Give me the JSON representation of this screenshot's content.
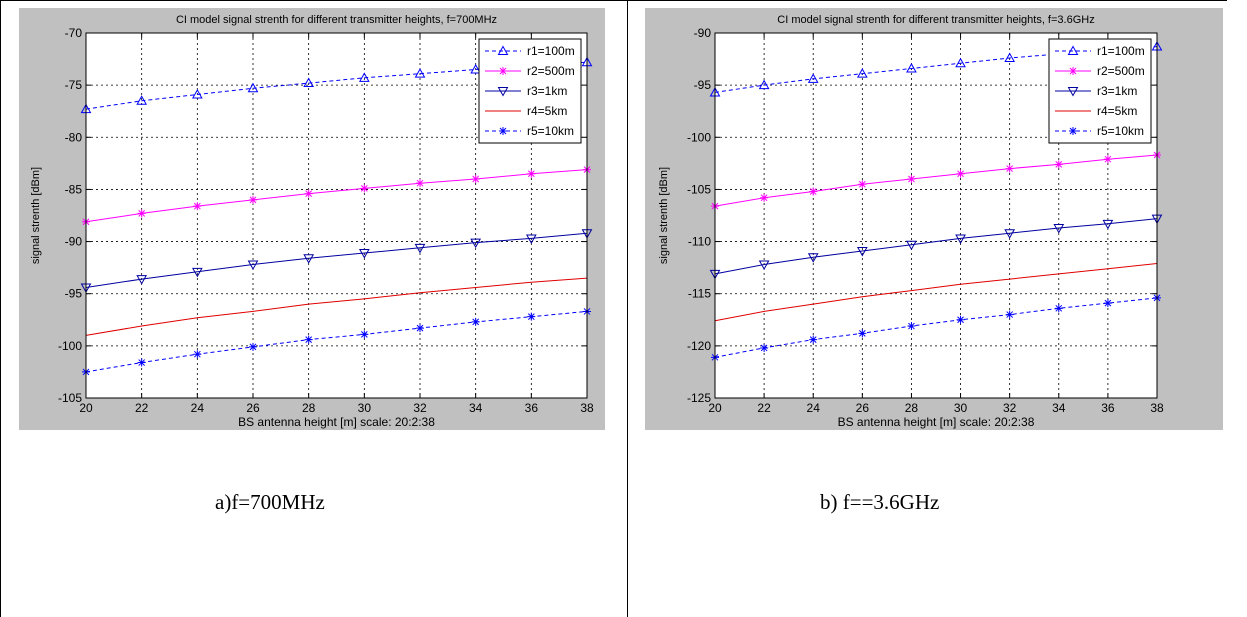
{
  "captions": {
    "a": "a)f=700MHz",
    "b": "b) f==3.6GHz"
  },
  "colors": {
    "blue": "#0000ff",
    "magenta": "#ff00ff",
    "navy": "#0000a0",
    "red": "#e00000",
    "background": "#c0c0c0",
    "plot_area": "#ffffff"
  },
  "chart_data": [
    {
      "type": "line",
      "title": "CI model signal strenth for different transmitter heights, f=700MHz",
      "xlabel": "BS antenna height [m] scale: 20:2:38",
      "ylabel": "signal strenth [dBm]",
      "xlim": [
        20,
        38
      ],
      "ylim": [
        -105,
        -70
      ],
      "xticks": [
        20,
        22,
        24,
        26,
        28,
        30,
        32,
        34,
        36,
        38
      ],
      "yticks": [
        -70,
        -75,
        -80,
        -85,
        -90,
        -95,
        -100,
        -105
      ],
      "grid": true,
      "legend_position": "top-right",
      "x": [
        20,
        22,
        24,
        26,
        28,
        30,
        32,
        34,
        36,
        38
      ],
      "series": [
        {
          "name": "r1=100m",
          "style": "dashed",
          "marker": "triangle-up",
          "color": "#0000ff",
          "values": [
            -77.3,
            -76.5,
            -75.9,
            -75.3,
            -74.8,
            -74.3,
            -73.9,
            -73.5,
            -73.1,
            -72.8
          ]
        },
        {
          "name": "r2=500m",
          "style": "solid",
          "marker": "star",
          "color": "#ff00ff",
          "values": [
            -88.1,
            -87.3,
            -86.6,
            -86.0,
            -85.4,
            -84.9,
            -84.4,
            -84.0,
            -83.5,
            -83.1
          ]
        },
        {
          "name": "r3=1km",
          "style": "solid",
          "marker": "triangle-down",
          "color": "#0000a0",
          "values": [
            -94.4,
            -93.6,
            -92.9,
            -92.2,
            -91.6,
            -91.1,
            -90.6,
            -90.1,
            -89.7,
            -89.2
          ]
        },
        {
          "name": "r4=5km",
          "style": "solid",
          "marker": "none",
          "color": "#e00000",
          "values": [
            -99.0,
            -98.1,
            -97.3,
            -96.7,
            -96.0,
            -95.5,
            -94.9,
            -94.4,
            -93.9,
            -93.5
          ]
        },
        {
          "name": "r5=10km",
          "style": "dashed",
          "marker": "star",
          "color": "#0000ff",
          "values": [
            -102.5,
            -101.6,
            -100.8,
            -100.1,
            -99.4,
            -98.9,
            -98.3,
            -97.7,
            -97.2,
            -96.7
          ]
        }
      ]
    },
    {
      "type": "line",
      "title": "CI model signal strenth for different transmitter heights, f=3.6GHz",
      "xlabel": "BS antenna height [m] scale: 20:2:38",
      "ylabel": "signal strenth [dBm]",
      "xlim": [
        20,
        38
      ],
      "ylim": [
        -125,
        -90
      ],
      "xticks": [
        20,
        22,
        24,
        26,
        28,
        30,
        32,
        34,
        36,
        38
      ],
      "yticks": [
        -90,
        -95,
        -100,
        -105,
        -110,
        -115,
        -120,
        -125
      ],
      "grid": true,
      "legend_position": "top-right",
      "x": [
        20,
        22,
        24,
        26,
        28,
        30,
        32,
        34,
        36,
        38
      ],
      "series": [
        {
          "name": "r1=100m",
          "style": "dashed",
          "marker": "triangle-up",
          "color": "#0000ff",
          "values": [
            -95.7,
            -95.0,
            -94.4,
            -93.9,
            -93.4,
            -92.9,
            -92.4,
            -92.0,
            -91.6,
            -91.3
          ]
        },
        {
          "name": "r2=500m",
          "style": "solid",
          "marker": "star",
          "color": "#ff00ff",
          "values": [
            -106.6,
            -105.8,
            -105.2,
            -104.5,
            -104.0,
            -103.5,
            -103.0,
            -102.6,
            -102.1,
            -101.7
          ]
        },
        {
          "name": "r3=1km",
          "style": "solid",
          "marker": "triangle-down",
          "color": "#0000a0",
          "values": [
            -113.1,
            -112.2,
            -111.5,
            -110.9,
            -110.3,
            -109.7,
            -109.2,
            -108.7,
            -108.3,
            -107.8
          ]
        },
        {
          "name": "r4=5km",
          "style": "solid",
          "marker": "none",
          "color": "#e00000",
          "values": [
            -117.6,
            -116.7,
            -116.0,
            -115.3,
            -114.7,
            -114.1,
            -113.6,
            -113.1,
            -112.6,
            -112.1
          ]
        },
        {
          "name": "r5=10km",
          "style": "dashed",
          "marker": "star",
          "color": "#0000ff",
          "values": [
            -121.1,
            -120.2,
            -119.4,
            -118.8,
            -118.1,
            -117.5,
            -117.0,
            -116.4,
            -115.9,
            -115.4
          ]
        }
      ]
    }
  ]
}
